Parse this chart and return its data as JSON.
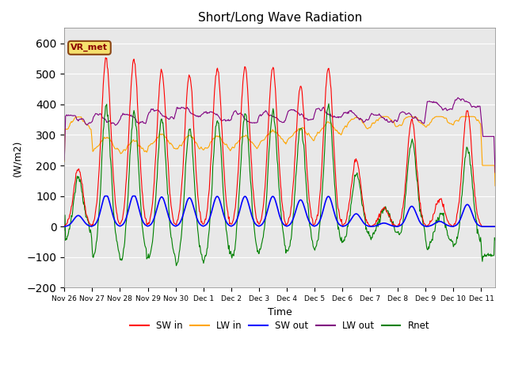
{
  "title": "Short/Long Wave Radiation",
  "xlabel": "Time",
  "ylabel": "(W/m2)",
  "ylim": [
    -200,
    650
  ],
  "yticks": [
    -200,
    -100,
    0,
    100,
    200,
    300,
    400,
    500,
    600
  ],
  "bg_color": "#e8e8e8",
  "legend": [
    "SW in",
    "LW in",
    "SW out",
    "LW out",
    "Rnet"
  ],
  "legend_colors": [
    "red",
    "orange",
    "blue",
    "purple",
    "green"
  ],
  "annotation_text": "VR_met",
  "annotation_bg": "#f5e06e",
  "annotation_border": "#8B4513",
  "day_peaks_sw_in": [
    190,
    550,
    545,
    510,
    495,
    520,
    520,
    520,
    460,
    520,
    220,
    60,
    350,
    90,
    380,
    0
  ],
  "lw_in_base": [
    315,
    245,
    235,
    255,
    250,
    248,
    252,
    268,
    278,
    295,
    315,
    325,
    325,
    325,
    335,
    345
  ],
  "lw_out_base": [
    350,
    350,
    355,
    365,
    375,
    360,
    355,
    360,
    365,
    370,
    360,
    355,
    360,
    365,
    375,
    380
  ]
}
